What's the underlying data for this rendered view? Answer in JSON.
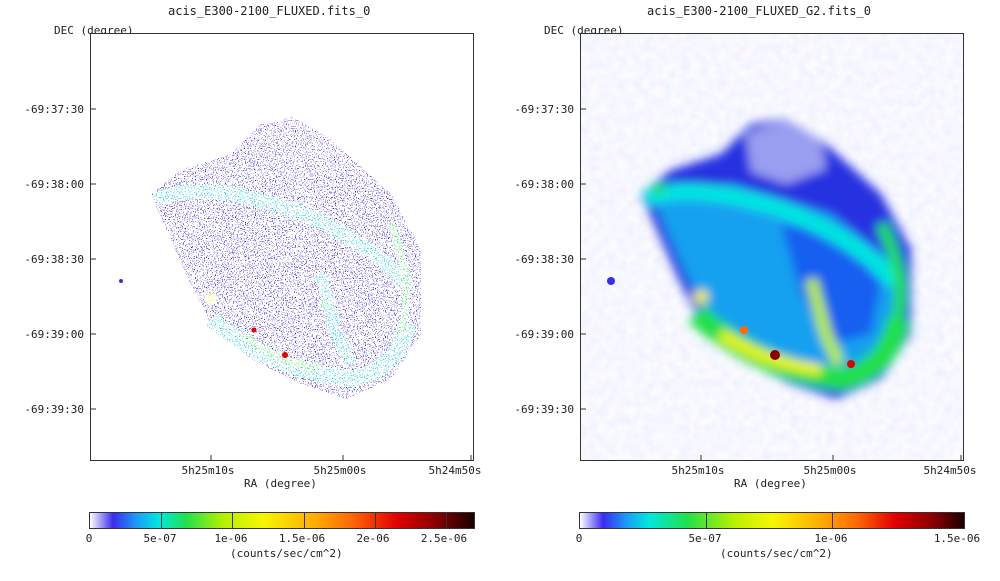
{
  "panels": [
    {
      "title": "acis_E300-2100_FLUXED.fits_0",
      "ylabel": "DEC (degree)",
      "xlabel": "RA (degree)",
      "yticks": [
        "-69:37:30",
        "-69:38:00",
        "-69:38:30",
        "-69:39:00",
        "-69:39:30"
      ],
      "xticks": [
        "5h25m10s",
        "5h25m00s",
        "5h24m50s"
      ],
      "colorbar": {
        "ticks": [
          "0",
          "5e-07",
          "1e-06",
          "1.5e-06",
          "2e-06",
          "2.5e-06"
        ],
        "unit": "(counts/sec/cm^2)"
      }
    },
    {
      "title": "acis_E300-2100_FLUXED_G2.fits_0",
      "ylabel": "DEC (degree)",
      "xlabel": "RA (degree)",
      "yticks": [
        "-69:37:30",
        "-69:38:00",
        "-69:38:30",
        "-69:39:00",
        "-69:39:30"
      ],
      "xticks": [
        "5h25m10s",
        "5h25m00s",
        "5h24m50s"
      ],
      "colorbar": {
        "ticks": [
          "0",
          "5e-07",
          "1e-06",
          "1.5e-06"
        ],
        "unit": "(counts/sec/cm^2)"
      }
    }
  ],
  "colors": {
    "low": "#3a2bf0",
    "mid": "#00e8e0",
    "green": "#22e04a",
    "yellow": "#f6f600",
    "orange": "#ff8c00",
    "red": "#e00000",
    "peak": "#1a0000"
  }
}
